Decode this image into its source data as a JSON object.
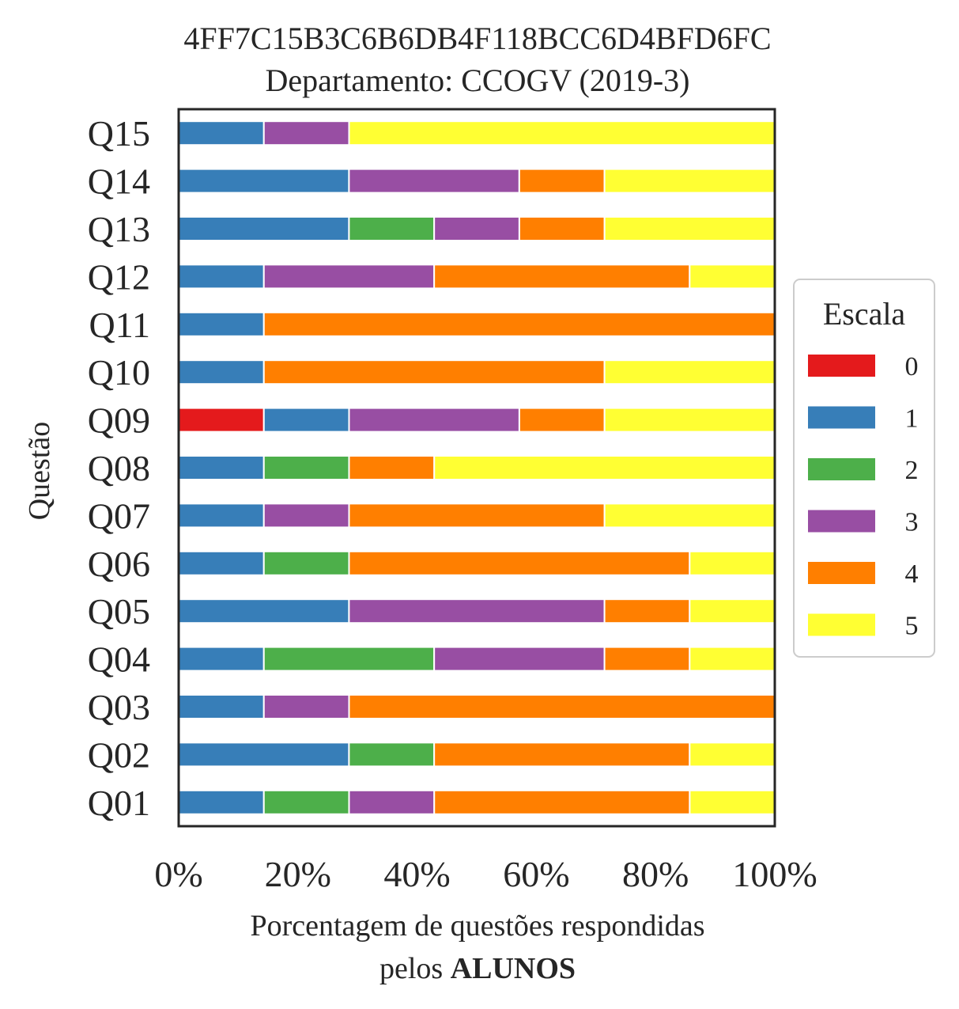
{
  "chart_data": {
    "type": "bar",
    "orientation": "horizontal",
    "stacked": true,
    "normalized": true,
    "title": "4FF7C15B3C6B6DB4F118BCC6D4BFD6FC",
    "subtitle": "Departamento: CCOGV (2019-3)",
    "xlabel": "Porcentagem de questões respondidas",
    "xlabel_line2_prefix": "pelos ",
    "xlabel_line2_bold": "ALUNOS",
    "ylabel": "Questão",
    "xlim": [
      0,
      100
    ],
    "x_ticks": [
      "0%",
      "20%",
      "40%",
      "60%",
      "80%",
      "100%"
    ],
    "grid": false,
    "legend": {
      "title": "Escala",
      "position": "right",
      "entries": [
        "0",
        "1",
        "2",
        "3",
        "4",
        "5"
      ]
    },
    "categories": [
      "Q01",
      "Q02",
      "Q03",
      "Q04",
      "Q05",
      "Q06",
      "Q07",
      "Q08",
      "Q09",
      "Q10",
      "Q11",
      "Q12",
      "Q13",
      "Q14",
      "Q15"
    ],
    "series": [
      {
        "name": "0",
        "color": "#e41a1c",
        "values": [
          0,
          0,
          0,
          0,
          0,
          0,
          0,
          0,
          14.29,
          0,
          0,
          0,
          0,
          0,
          0
        ]
      },
      {
        "name": "1",
        "color": "#377eb8",
        "values": [
          14.29,
          28.57,
          14.29,
          14.29,
          28.57,
          14.29,
          14.29,
          14.29,
          14.29,
          14.29,
          14.29,
          14.29,
          28.57,
          28.57,
          14.29
        ]
      },
      {
        "name": "2",
        "color": "#4daf4a",
        "values": [
          14.29,
          14.29,
          0,
          28.57,
          0,
          14.29,
          0,
          14.29,
          0,
          0,
          0,
          0,
          14.29,
          0,
          0
        ]
      },
      {
        "name": "3",
        "color": "#984ea3",
        "values": [
          14.29,
          0,
          14.29,
          28.57,
          42.86,
          0,
          14.29,
          0,
          28.57,
          0,
          0,
          28.57,
          14.29,
          28.57,
          14.29
        ]
      },
      {
        "name": "4",
        "color": "#ff7f00",
        "values": [
          42.86,
          42.86,
          71.43,
          14.29,
          14.29,
          57.14,
          42.86,
          14.29,
          14.29,
          57.14,
          85.71,
          42.86,
          14.29,
          14.29,
          0
        ]
      },
      {
        "name": "5",
        "color": "#ffff33",
        "values": [
          14.29,
          14.29,
          0,
          14.29,
          14.29,
          14.29,
          28.57,
          57.14,
          28.57,
          28.57,
          0,
          14.29,
          28.57,
          28.57,
          71.43
        ]
      }
    ]
  }
}
